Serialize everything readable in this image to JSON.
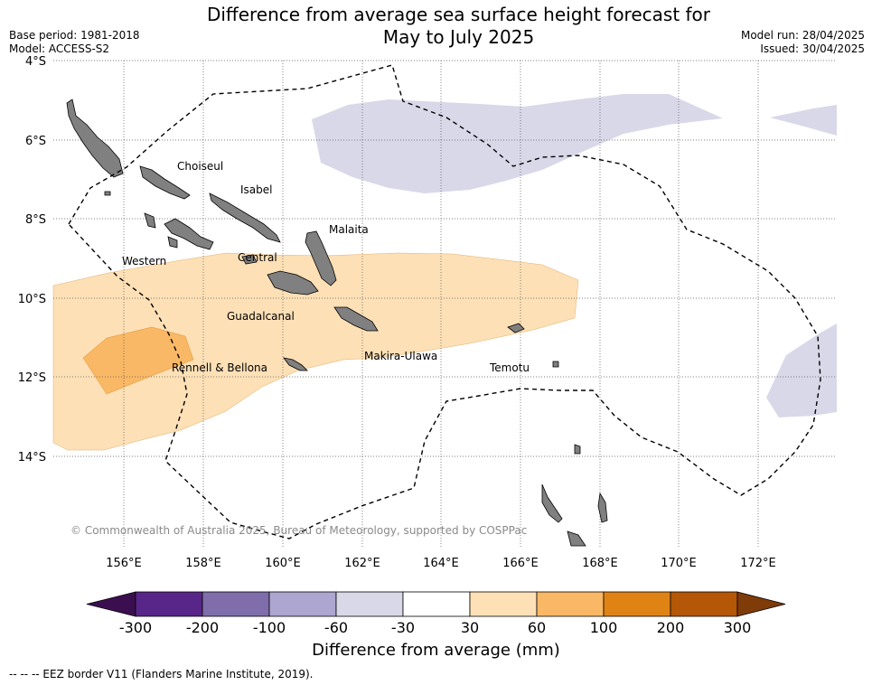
{
  "title_line1": "Difference from average sea surface height forecast for",
  "title_line2": "May to July 2025",
  "base_period": "Base period: 1981-2018",
  "model": "Model: ACCESS-S2",
  "model_run": "Model run: 28/04/2025",
  "issued": "Issued: 30/04/2025",
  "copyright": "© Commonwealth of Australia 2025, Bureau of Meteorology, supported by COSPPac",
  "lat_ticks": [
    "4°S",
    "6°S",
    "8°S",
    "10°S",
    "12°S",
    "14°S"
  ],
  "lon_ticks": [
    "156°E",
    "158°E",
    "160°E",
    "162°E",
    "164°E",
    "166°E",
    "168°E",
    "170°E",
    "172°E"
  ],
  "regions": [
    "Choiseul",
    "Isabel",
    "Malaita",
    "Western",
    "Central",
    "Guadalcanal",
    "Makira-Ulawa",
    "Rennell & Bellona",
    "Temotu"
  ],
  "colorbar": {
    "ticks": [
      "-300",
      "-200",
      "-100",
      "-60",
      "-30",
      "30",
      "60",
      "100",
      "200",
      "300"
    ],
    "colors": [
      "#3b0f4f",
      "#582688",
      "#7f6eab",
      "#aca6d0",
      "#d9d8e9",
      "#ffffff",
      "#fde0b6",
      "#f9b865",
      "#e08315",
      "#b45707",
      "#7f3b08"
    ],
    "label": "Difference from average (mm)"
  },
  "footnote": "--  --  -- EEZ border V11 (Flanders Marine Institute, 2019)."
}
